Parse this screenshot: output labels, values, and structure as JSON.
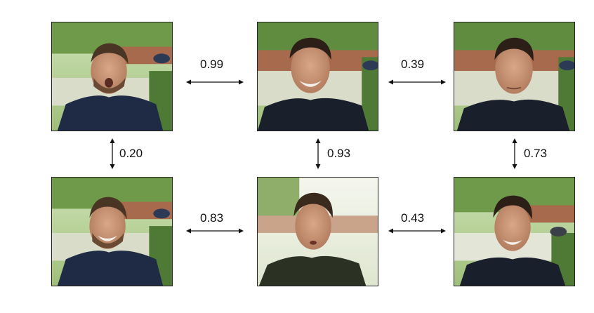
{
  "photos": [
    {
      "id": "r1c1",
      "expression": "surprised"
    },
    {
      "id": "r1c2",
      "expression": "smiling"
    },
    {
      "id": "r1c3",
      "expression": "neutral"
    },
    {
      "id": "r2c1",
      "expression": "laughing"
    },
    {
      "id": "r2c2",
      "expression": "talking"
    },
    {
      "id": "r2c3",
      "expression": "smiling"
    }
  ],
  "scores": {
    "r1_c1_c2": "0.99",
    "r1_c2_c3": "0.39",
    "c1_r1_r2": "0.20",
    "c2_r1_r2": "0.93",
    "c3_r1_r2": "0.73",
    "r2_c1_c2": "0.83",
    "r2_c2_c3": "0.43"
  },
  "colors": {
    "border": "#222222",
    "arrow": "#111111",
    "background": "#ffffff"
  },
  "icons": {
    "horizontal": "double-arrow-horizontal-icon",
    "vertical": "double-arrow-vertical-icon"
  }
}
